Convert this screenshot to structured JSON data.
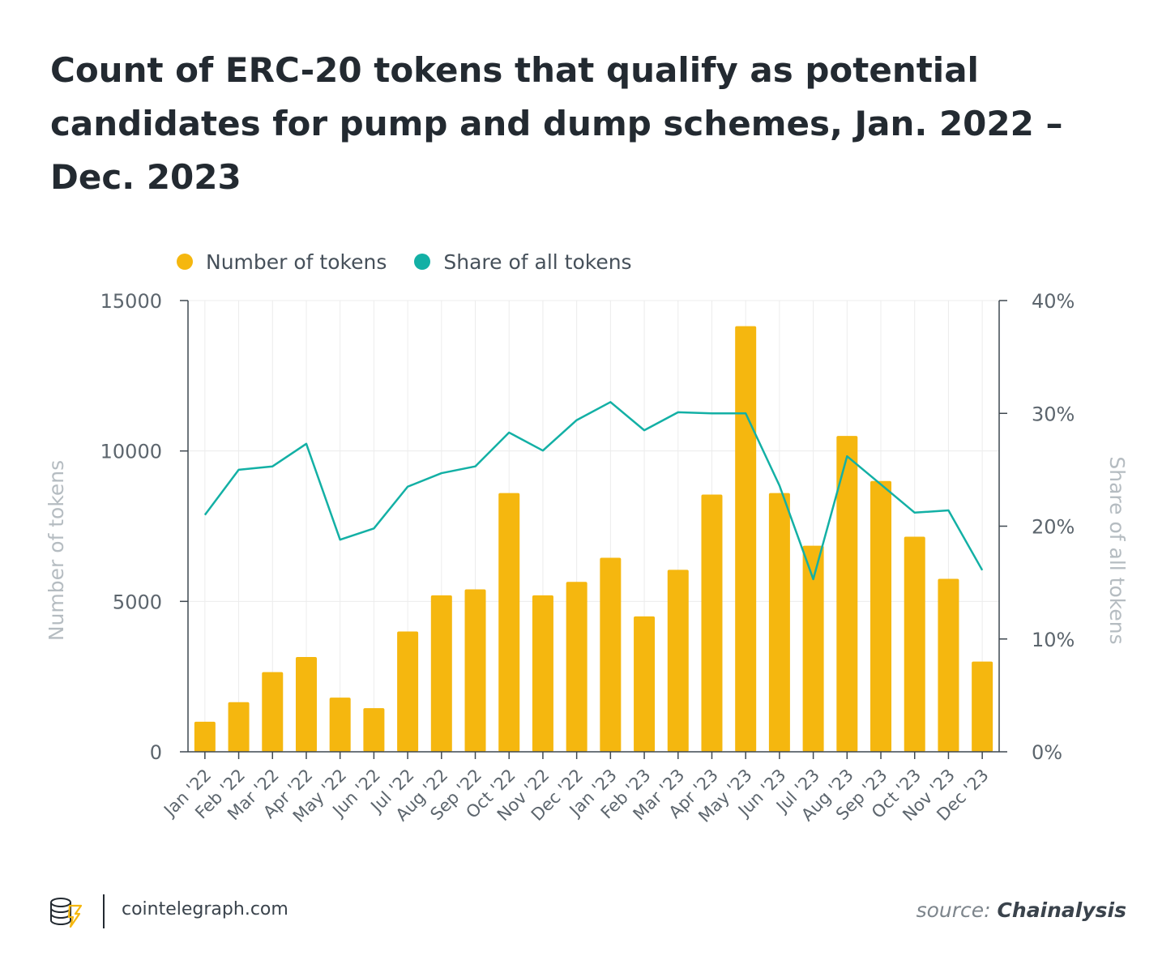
{
  "chart_data": {
    "type": "bar",
    "title": "Count of ERC-20 tokens that qualify as potential candidates for pump and dump schemes, Jan. 2022 – Dec. 2023",
    "categories": [
      "Jan '22",
      "Feb '22",
      "Mar '22",
      "Apr '22",
      "May '22",
      "Jun '22",
      "Jul '22",
      "Aug '22",
      "Sep '22",
      "Oct '22",
      "Nov '22",
      "Dec '22",
      "Jan '23",
      "Feb '23",
      "Mar '23",
      "Apr '23",
      "May '23",
      "Jun '23",
      "Jul '23",
      "Aug '23",
      "Sep '23",
      "Oct '23",
      "Nov '23",
      "Dec '23"
    ],
    "series": [
      {
        "name": "Number of tokens",
        "type": "bar",
        "axis": "left",
        "color": "#f5b70f",
        "values": [
          1000,
          1650,
          2650,
          3150,
          1800,
          1450,
          4000,
          5200,
          5400,
          8600,
          5200,
          5650,
          6450,
          4500,
          6050,
          8550,
          14150,
          8600,
          6850,
          10500,
          9000,
          7150,
          5750,
          3000
        ]
      },
      {
        "name": "Share of all tokens",
        "type": "line",
        "axis": "right",
        "color": "#13b0a5",
        "values": [
          21.0,
          25.0,
          25.3,
          27.3,
          18.8,
          19.8,
          23.5,
          24.7,
          25.3,
          28.3,
          26.7,
          29.4,
          31.0,
          28.5,
          30.1,
          30.0,
          30.0,
          23.6,
          15.3,
          26.2,
          23.7,
          21.2,
          21.4,
          16.1
        ]
      }
    ],
    "ylabel": "Number of tokens",
    "ylim": [
      0,
      15000
    ],
    "yticks": [
      "0",
      "5000",
      "10000",
      "15000"
    ],
    "y2label": "Share of all tokens",
    "y2lim": [
      0,
      40
    ],
    "y2ticks": [
      "0%",
      "10%",
      "20%",
      "30%",
      "40%"
    ],
    "legend_position": "top-left",
    "grid": true
  },
  "footer": {
    "site": "cointelegraph.com",
    "source_label": "source:",
    "source_name": "Chainalysis"
  },
  "colors": {
    "title": "#232a31",
    "axis_label": "#b5bcc1",
    "tick": "#5c656d",
    "grid": "#ececec",
    "logo_yellow": "#f5b70f"
  }
}
